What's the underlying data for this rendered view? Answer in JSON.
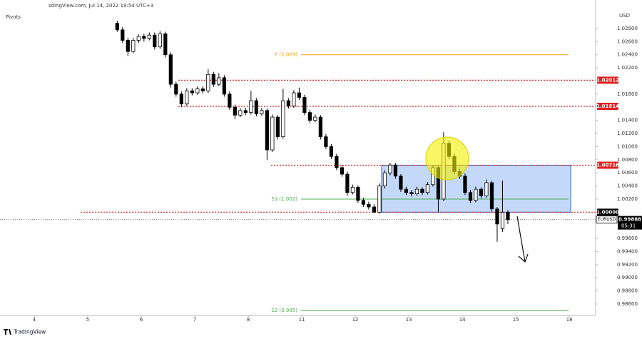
{
  "chart_data": {
    "type": "candlestick",
    "watermark": "sdingView.com, Jul 14, 2022 19:54 UTC+3",
    "indicator": "Pivots",
    "currency": "USD",
    "symbol": "EURUSD",
    "countdown": "05:31",
    "brand": "TradingView",
    "up_color": "#ffffff",
    "down_color": "#000000",
    "xlim": [
      -0.64,
      10.49
    ],
    "ylim": [
      0.98426,
      1.03235
    ],
    "xticks": [
      {
        "value": 0,
        "label": "4"
      },
      {
        "value": 1,
        "label": "5"
      },
      {
        "value": 2,
        "label": "6"
      },
      {
        "value": 3,
        "label": "7"
      },
      {
        "value": 4,
        "label": "8"
      },
      {
        "value": 5,
        "label": "11"
      },
      {
        "value": 6,
        "label": "12"
      },
      {
        "value": 7,
        "label": "13"
      },
      {
        "value": 8,
        "label": "14"
      },
      {
        "value": 9,
        "label": "15"
      },
      {
        "value": 10,
        "label": "18"
      }
    ],
    "yticks": [
      {
        "value": 1.028,
        "label": "1.02800"
      },
      {
        "value": 1.026,
        "label": "1.02600"
      },
      {
        "value": 1.024,
        "label": "1.02400"
      },
      {
        "value": 1.022,
        "label": "1.02200"
      },
      {
        "value": 1.018,
        "label": "1.01800"
      },
      {
        "value": 1.014,
        "label": "1.01400"
      },
      {
        "value": 1.012,
        "label": "1.01200"
      },
      {
        "value": 1.01,
        "label": "1.01000"
      },
      {
        "value": 1.008,
        "label": "1.00800"
      },
      {
        "value": 1.006,
        "label": "1.00600"
      },
      {
        "value": 1.004,
        "label": "1.00400"
      },
      {
        "value": 1.002,
        "label": "1.00200"
      },
      {
        "value": 0.996,
        "label": "0.99600"
      },
      {
        "value": 0.994,
        "label": "0.99400"
      },
      {
        "value": 0.992,
        "label": "0.99200"
      },
      {
        "value": 0.99,
        "label": "0.99000"
      },
      {
        "value": 0.988,
        "label": "0.98800"
      },
      {
        "value": 0.986,
        "label": "0.98600"
      }
    ],
    "levels": [
      {
        "value": 1.02012,
        "label": "1.02012",
        "color": "#e02020"
      },
      {
        "value": 1.01614,
        "label": "1.01614",
        "color": "#e02020"
      },
      {
        "value": 1.00716,
        "label": "1.00716",
        "color": "#e02020"
      },
      {
        "value": 1.0,
        "label": "1.00000",
        "color": "#000000"
      }
    ],
    "pivots": [
      {
        "value": 1.024,
        "label": "P (1.024)",
        "color": "#f7a01f"
      },
      {
        "value": 1.002,
        "label": "S1 (1.002)",
        "color": "#4caf50"
      },
      {
        "value": 0.985,
        "label": "S2 (0.985)",
        "color": "#4caf50"
      }
    ],
    "last_price": {
      "value": 0.99888,
      "label": "0.99888"
    },
    "x": [
      1.55,
      1.65,
      1.75,
      1.85,
      1.95,
      2.05,
      2.15,
      2.25,
      2.35,
      2.45,
      2.55,
      2.65,
      2.75,
      2.85,
      2.95,
      3.05,
      3.15,
      3.25,
      3.35,
      3.45,
      3.55,
      3.65,
      3.75,
      3.85,
      3.95,
      4.05,
      4.15,
      4.25,
      4.35,
      4.45,
      4.55,
      4.65,
      4.75,
      4.85,
      4.95,
      5.05,
      5.15,
      5.25,
      5.35,
      5.45,
      5.55,
      5.65,
      5.75,
      5.85,
      5.95,
      6.05,
      6.15,
      6.25,
      6.35,
      6.45,
      6.55,
      6.65,
      6.75,
      6.85,
      6.95,
      7.05,
      7.15,
      7.25,
      7.35,
      7.45,
      7.55,
      7.65,
      7.75,
      7.85,
      7.95,
      8.05,
      8.15,
      8.25,
      8.35,
      8.45,
      8.55,
      8.65,
      8.75,
      8.85
    ],
    "series": [
      {
        "open": [
          1.0288,
          1.0278,
          1.0262,
          1.0245,
          1.0262,
          1.0268,
          1.0265,
          1.027,
          1.0252,
          1.0272,
          1.024,
          1.0195,
          1.018,
          1.0165,
          1.0185,
          1.0182,
          1.0188,
          1.0185,
          1.021,
          1.0195,
          1.0205,
          1.018,
          1.016,
          1.0148,
          1.0155,
          1.0152,
          1.017,
          1.015,
          1.0155,
          1.0095,
          1.0145,
          1.0115,
          1.017,
          1.0162,
          1.0182,
          1.0175,
          1.0152,
          1.014,
          1.0145,
          1.0115,
          1.01,
          1.0085,
          1.0068,
          1.0058,
          1.003,
          1.0038,
          1.0018,
          1.0012,
          1.0008,
          1.0,
          1.004,
          1.006,
          1.0072,
          1.0055,
          1.0035,
          1.003,
          1.0028,
          1.0035,
          1.003,
          1.0042,
          1.0068,
          1.002,
          1.0105,
          1.0085,
          1.0062,
          1.0055,
          1.003,
          1.0018,
          1.0035,
          1.0025,
          1.0045,
          1.0005,
          0.9975,
          1.0
        ],
        "high": [
          1.0292,
          1.0282,
          1.0266,
          1.0266,
          1.0271,
          1.0272,
          1.0274,
          1.0274,
          1.0276,
          1.0275,
          1.0244,
          1.0199,
          1.0184,
          1.0189,
          1.0189,
          1.0192,
          1.0192,
          1.0218,
          1.0214,
          1.0212,
          1.0209,
          1.0184,
          1.0164,
          1.0159,
          1.0159,
          1.0185,
          1.0174,
          1.0159,
          1.0158,
          1.0149,
          1.0148,
          1.0188,
          1.0174,
          1.0186,
          1.019,
          1.0179,
          1.0156,
          1.0149,
          1.0148,
          1.0119,
          1.0104,
          1.0089,
          1.0072,
          1.0062,
          1.0042,
          1.0041,
          1.0022,
          1.0016,
          1.0012,
          1.0044,
          1.0064,
          1.0075,
          1.0075,
          1.0058,
          1.0039,
          1.0034,
          1.0039,
          1.0038,
          1.0046,
          1.0072,
          1.0071,
          1.0122,
          1.0109,
          1.0089,
          1.0066,
          1.0059,
          1.0034,
          1.0039,
          1.0038,
          1.005,
          1.0048,
          1.0008,
          1.0048,
          1.0003
        ],
        "low": [
          1.0275,
          1.0258,
          1.0238,
          1.0242,
          1.0258,
          1.026,
          1.0262,
          1.0248,
          1.0249,
          1.0236,
          1.019,
          1.0176,
          1.016,
          1.0162,
          1.0178,
          1.0179,
          1.0181,
          1.0182,
          1.0191,
          1.0192,
          1.0176,
          1.0156,
          1.0142,
          1.0145,
          1.0148,
          1.0149,
          1.0146,
          1.0147,
          1.008,
          1.0092,
          1.0111,
          1.0112,
          1.0158,
          1.0159,
          1.0171,
          1.0148,
          1.0136,
          1.0137,
          1.0111,
          1.0096,
          1.0081,
          1.0064,
          1.0054,
          1.0025,
          1.0027,
          1.0014,
          1.0008,
          1.0004,
          0.9999,
          0.9998,
          1.0036,
          1.0056,
          1.0051,
          1.0031,
          1.0026,
          1.0024,
          1.0025,
          1.0026,
          1.0027,
          1.0039,
          1.0,
          1.0017,
          1.0081,
          1.0058,
          1.0051,
          1.0026,
          1.0014,
          1.0015,
          1.0021,
          1.0022,
          1.0001,
          0.9955,
          0.997,
          0.9982
        ],
        "close": [
          1.0278,
          1.0262,
          1.0245,
          1.0262,
          1.0268,
          1.0265,
          1.027,
          1.0252,
          1.0272,
          1.024,
          1.0195,
          1.018,
          1.0165,
          1.0185,
          1.0182,
          1.0188,
          1.0185,
          1.021,
          1.0195,
          1.0205,
          1.018,
          1.016,
          1.0148,
          1.0155,
          1.0152,
          1.017,
          1.015,
          1.0155,
          1.0095,
          1.0145,
          1.0115,
          1.017,
          1.0162,
          1.0182,
          1.0175,
          1.0152,
          1.014,
          1.0145,
          1.0115,
          1.01,
          1.0085,
          1.0068,
          1.0058,
          1.003,
          1.0038,
          1.0018,
          1.0012,
          1.0008,
          1.0,
          1.004,
          1.006,
          1.0072,
          1.0055,
          1.0035,
          1.003,
          1.0028,
          1.0035,
          1.003,
          1.0042,
          1.0068,
          1.002,
          1.0105,
          1.0085,
          1.0062,
          1.0055,
          1.003,
          1.0018,
          1.0035,
          1.0025,
          1.0045,
          1.0005,
          0.9982,
          1.0,
          0.99888
        ]
      }
    ]
  }
}
